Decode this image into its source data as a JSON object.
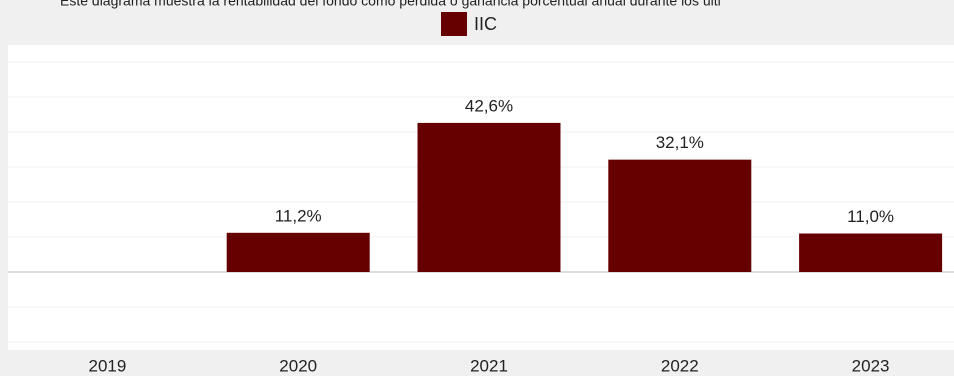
{
  "chart_data": {
    "type": "bar",
    "subtitle": "Este diagrama muestra la rentabilidad del fondo como pérdida o ganancia porcentual anual durante los últi",
    "categories": [
      "2019",
      "2020",
      "2021",
      "2022",
      "2023"
    ],
    "series": [
      {
        "name": "IIC",
        "color": "#660000",
        "values": [
          null,
          11.2,
          42.6,
          32.1,
          11.0
        ],
        "value_labels": [
          null,
          "11,2%",
          "42,6%",
          "32,1%",
          "11,0%"
        ]
      }
    ],
    "ylim": [
      -20,
      60
    ],
    "yticks": [
      -20,
      -10,
      0,
      10,
      20,
      30,
      40,
      50,
      60
    ],
    "grid": true,
    "legend": "top"
  }
}
